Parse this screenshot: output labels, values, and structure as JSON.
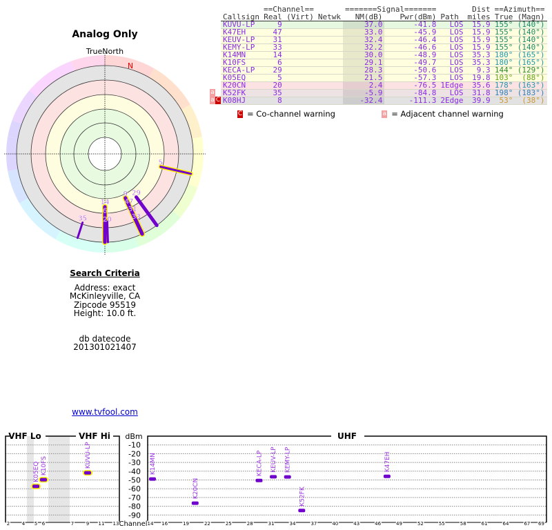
{
  "polar": {
    "title": "Analog Only",
    "north_label": "TrueNorth",
    "magnetic_north_label": "N"
  },
  "table": {
    "group_headers": {
      "channel": "==Channel==",
      "signal": "=======Signal=======",
      "dist": "Dist",
      "azimuth": "==Azimuth=="
    },
    "columns": [
      "Callsign",
      "Real",
      "(Virt)",
      "Netwk",
      "NM(dB)",
      "Pwr(dBm)",
      "Path",
      "miles",
      "True",
      "(Magn)"
    ],
    "rows": [
      {
        "callsign": "KUVU-LP",
        "real": "9",
        "virt": "",
        "netwk": "",
        "nm": "37.0",
        "pwr": "-41.8",
        "path": "LOS",
        "dist": "15.9",
        "true": "155°",
        "magn": "(140°)",
        "bg": "#e6f8e0",
        "azcolor": "#1f8a66",
        "warn": ""
      },
      {
        "callsign": "K47EH",
        "real": "47",
        "virt": "",
        "netwk": "",
        "nm": "33.0",
        "pwr": "-45.9",
        "path": "LOS",
        "dist": "15.9",
        "true": "155°",
        "magn": "(140°)",
        "bg": "#ffffe0",
        "azcolor": "#1f8a66",
        "warn": ""
      },
      {
        "callsign": "KEUV-LP",
        "real": "31",
        "virt": "",
        "netwk": "",
        "nm": "32.4",
        "pwr": "-46.4",
        "path": "LOS",
        "dist": "15.9",
        "true": "155°",
        "magn": "(140°)",
        "bg": "#ffffe0",
        "azcolor": "#1f8a66",
        "warn": ""
      },
      {
        "callsign": "KEMY-LP",
        "real": "33",
        "virt": "",
        "netwk": "",
        "nm": "32.2",
        "pwr": "-46.6",
        "path": "LOS",
        "dist": "15.9",
        "true": "155°",
        "magn": "(140°)",
        "bg": "#ffffe0",
        "azcolor": "#1f8a66",
        "warn": ""
      },
      {
        "callsign": "K14MN",
        "real": "14",
        "virt": "",
        "netwk": "",
        "nm": "30.0",
        "pwr": "-48.9",
        "path": "LOS",
        "dist": "35.3",
        "true": "180°",
        "magn": "(165°)",
        "bg": "#ffffe0",
        "azcolor": "#2399aa",
        "warn": ""
      },
      {
        "callsign": "K10FS",
        "real": "6",
        "virt": "",
        "netwk": "",
        "nm": "29.1",
        "pwr": "-49.7",
        "path": "LOS",
        "dist": "35.3",
        "true": "180°",
        "magn": "(165°)",
        "bg": "#ffffe0",
        "azcolor": "#2399aa",
        "warn": ""
      },
      {
        "callsign": "KECA-LP",
        "real": "29",
        "virt": "",
        "netwk": "",
        "nm": "28.3",
        "pwr": "-50.6",
        "path": "LOS",
        "dist": "9.3",
        "true": "144°",
        "magn": "(129°)",
        "bg": "#ffffe0",
        "azcolor": "#2e8b2e",
        "warn": ""
      },
      {
        "callsign": "K05EQ",
        "real": "5",
        "virt": "",
        "netwk": "",
        "nm": "21.5",
        "pwr": "-57.3",
        "path": "LOS",
        "dist": "19.8",
        "true": "103°",
        "magn": "(88°)",
        "bg": "#ffffe0",
        "azcolor": "#6aa319",
        "warn": ""
      },
      {
        "callsign": "K20CN",
        "real": "20",
        "virt": "",
        "netwk": "",
        "nm": "2.4",
        "pwr": "-76.5",
        "path": "1Edge",
        "dist": "35.6",
        "true": "178°",
        "magn": "(163°)",
        "bg": "#fde2e4",
        "azcolor": "#2399aa",
        "warn": ""
      },
      {
        "callsign": "K52FK",
        "real": "35",
        "virt": "",
        "netwk": "",
        "nm": "-5.9",
        "pwr": "-84.8",
        "path": "LOS",
        "dist": "31.8",
        "true": "198°",
        "magn": "(183°)",
        "bg": "#ede2e4",
        "azcolor": "#2f80b8",
        "warn": "a"
      },
      {
        "callsign": "K08HJ",
        "real": "8",
        "virt": "",
        "netwk": "",
        "nm": "-32.4",
        "pwr": "-111.3",
        "path": "2Edge",
        "dist": "39.9",
        "true": "53°",
        "magn": "(38°)",
        "bg": "#e2e2e2",
        "azcolor": "#cc9633",
        "warn": "aC"
      }
    ],
    "legend": {
      "co_badge": "C",
      "co_label": "= Co-channel warning",
      "adj_badge": "a",
      "adj_label": "= Adjacent channel warning"
    }
  },
  "criteria": {
    "heading": "Search Criteria",
    "address": "Address: exact",
    "city": "McKinleyville, CA",
    "zip": "Zipcode 95519",
    "height": "Height: 10.0 ft.",
    "db_label": "db datecode",
    "db_value": "201301021407"
  },
  "link": "www.tvfool.com",
  "spectrum": {
    "vhf_lo": "VHF Lo",
    "vhf_hi": "VHF Hi",
    "uhf": "UHF",
    "unit": "dBm",
    "channel_label": "Channel",
    "db_ticks": [
      "-10",
      "-20",
      "-30",
      "-40",
      "-50",
      "-60",
      "-70",
      "-80",
      "-90"
    ],
    "vhf_channels": [
      "2",
      "4",
      "5",
      "6",
      "7",
      "9",
      "11",
      "13"
    ],
    "uhf_channels": [
      "14",
      "16",
      "19",
      "22",
      "25",
      "28",
      "31",
      "34",
      "37",
      "40",
      "43",
      "46",
      "49",
      "52",
      "55",
      "58",
      "61",
      "64",
      "67",
      "69"
    ]
  },
  "colors": {
    "station": "#7000cc",
    "label": "#9a33e0",
    "highlight": "#ffee00"
  }
}
